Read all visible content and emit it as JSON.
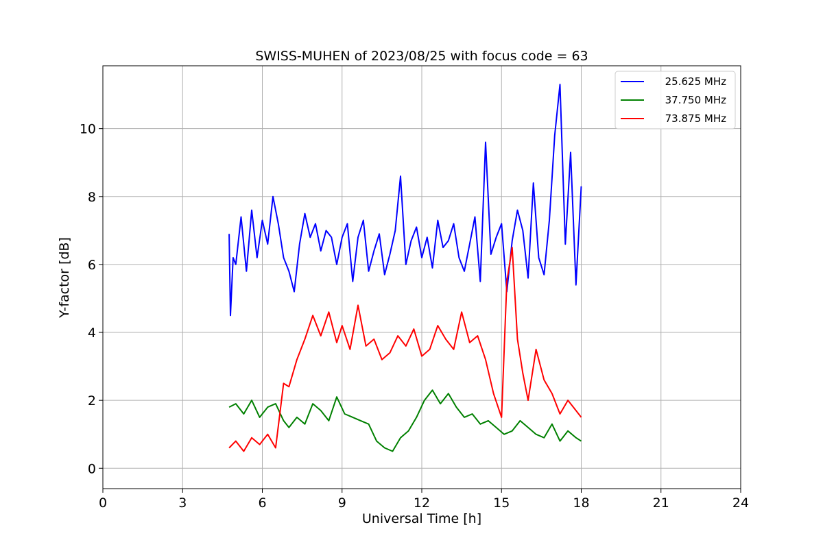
{
  "chart_data": {
    "type": "line",
    "title": "SWISS-MUHEN of 2023/08/25 with focus code = 63",
    "xlabel": "Universal Time [h]",
    "ylabel": "Y-factor [dB]",
    "xlim": [
      0,
      24
    ],
    "ylim": [
      -0.6,
      11.85
    ],
    "xticks": [
      0,
      3,
      6,
      9,
      12,
      15,
      18,
      21,
      24
    ],
    "yticks": [
      0,
      2,
      4,
      6,
      8,
      10
    ],
    "grid": true,
    "legend_position": "top-right",
    "series": [
      {
        "name": "25.625 MHz",
        "color": "#0000ff",
        "x": [
          4.75,
          4.8,
          4.9,
          5.0,
          5.2,
          5.4,
          5.6,
          5.8,
          6.0,
          6.2,
          6.4,
          6.6,
          6.8,
          7.0,
          7.2,
          7.4,
          7.6,
          7.8,
          8.0,
          8.2,
          8.4,
          8.6,
          8.8,
          9.0,
          9.2,
          9.4,
          9.6,
          9.8,
          10.0,
          10.2,
          10.4,
          10.6,
          10.8,
          11.0,
          11.2,
          11.4,
          11.6,
          11.8,
          12.0,
          12.2,
          12.4,
          12.6,
          12.8,
          13.0,
          13.2,
          13.4,
          13.6,
          13.8,
          14.0,
          14.2,
          14.4,
          14.6,
          14.8,
          15.0,
          15.2,
          15.4,
          15.6,
          15.8,
          16.0,
          16.2,
          16.4,
          16.6,
          16.8,
          17.0,
          17.2,
          17.4,
          17.6,
          17.8,
          18.0
        ],
        "y": [
          6.9,
          4.5,
          6.2,
          6.0,
          7.4,
          5.8,
          7.6,
          6.2,
          7.3,
          6.6,
          8.0,
          7.2,
          6.2,
          5.8,
          5.2,
          6.6,
          7.5,
          6.8,
          7.2,
          6.4,
          7.0,
          6.8,
          6.0,
          6.8,
          7.2,
          5.5,
          6.8,
          7.3,
          5.8,
          6.4,
          6.9,
          5.7,
          6.3,
          7.0,
          8.6,
          6.0,
          6.7,
          7.1,
          6.2,
          6.8,
          5.9,
          7.3,
          6.5,
          6.7,
          7.2,
          6.2,
          5.8,
          6.6,
          7.4,
          5.5,
          9.6,
          6.3,
          6.8,
          7.2,
          5.2,
          6.7,
          7.6,
          7.0,
          5.6,
          8.4,
          6.2,
          5.7,
          7.3,
          9.8,
          11.3,
          6.6,
          9.3,
          5.4,
          8.3
        ]
      },
      {
        "name": "37.750 MHz",
        "color": "#008000",
        "x": [
          4.75,
          5.0,
          5.3,
          5.6,
          5.9,
          6.2,
          6.5,
          6.8,
          7.0,
          7.3,
          7.6,
          7.9,
          8.2,
          8.5,
          8.8,
          9.1,
          9.4,
          9.7,
          10.0,
          10.3,
          10.6,
          10.9,
          11.2,
          11.5,
          11.8,
          12.1,
          12.4,
          12.7,
          13.0,
          13.3,
          13.6,
          13.9,
          14.2,
          14.5,
          14.8,
          15.1,
          15.4,
          15.7,
          16.0,
          16.3,
          16.6,
          16.9,
          17.2,
          17.5,
          17.8,
          18.0
        ],
        "y": [
          1.8,
          1.9,
          1.6,
          2.0,
          1.5,
          1.8,
          1.9,
          1.4,
          1.2,
          1.5,
          1.3,
          1.9,
          1.7,
          1.4,
          2.1,
          1.6,
          1.5,
          1.4,
          1.3,
          0.8,
          0.6,
          0.5,
          0.9,
          1.1,
          1.5,
          2.0,
          2.3,
          1.9,
          2.2,
          1.8,
          1.5,
          1.6,
          1.3,
          1.4,
          1.2,
          1.0,
          1.1,
          1.4,
          1.2,
          1.0,
          0.9,
          1.3,
          0.8,
          1.1,
          0.9,
          0.8
        ]
      },
      {
        "name": "73.875 MHz",
        "color": "#ff0000",
        "x": [
          4.75,
          5.0,
          5.3,
          5.6,
          5.9,
          6.2,
          6.5,
          6.8,
          7.0,
          7.3,
          7.6,
          7.9,
          8.2,
          8.5,
          8.8,
          9.0,
          9.3,
          9.6,
          9.9,
          10.2,
          10.5,
          10.8,
          11.1,
          11.4,
          11.7,
          12.0,
          12.3,
          12.6,
          12.9,
          13.2,
          13.5,
          13.8,
          14.1,
          14.4,
          14.7,
          15.0,
          15.2,
          15.4,
          15.6,
          15.8,
          16.0,
          16.3,
          16.6,
          16.9,
          17.2,
          17.5,
          17.8,
          18.0
        ],
        "y": [
          0.6,
          0.8,
          0.5,
          0.9,
          0.7,
          1.0,
          0.6,
          2.5,
          2.4,
          3.2,
          3.8,
          4.5,
          3.9,
          4.6,
          3.7,
          4.2,
          3.5,
          4.8,
          3.6,
          3.8,
          3.2,
          3.4,
          3.9,
          3.6,
          4.1,
          3.3,
          3.5,
          4.2,
          3.8,
          3.5,
          4.6,
          3.7,
          3.9,
          3.2,
          2.2,
          1.5,
          5.5,
          6.5,
          3.8,
          2.8,
          2.0,
          3.5,
          2.6,
          2.2,
          1.6,
          2.0,
          1.7,
          1.5
        ]
      }
    ]
  }
}
